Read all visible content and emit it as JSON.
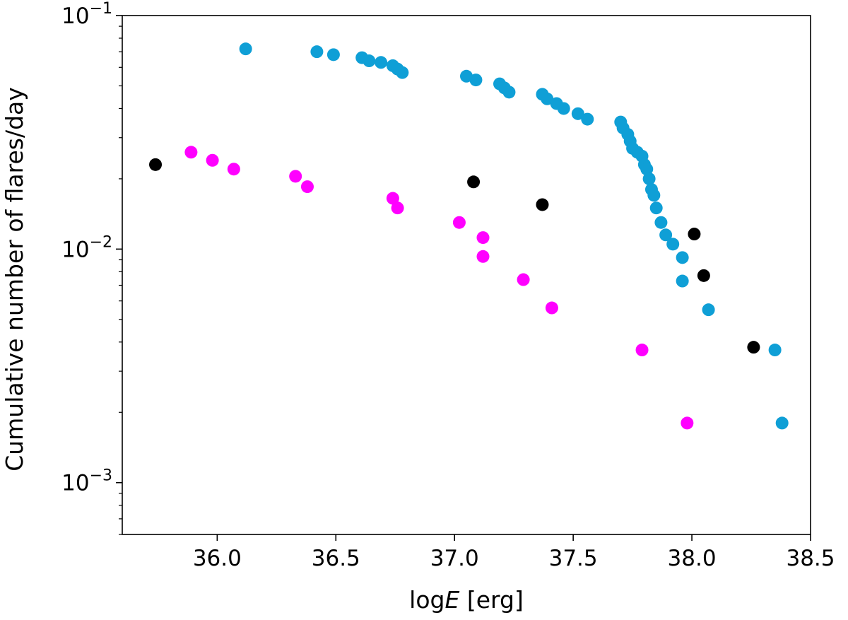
{
  "chart_data": {
    "type": "scatter",
    "title": "",
    "xlabel_prefix": "log",
    "xlabel_italic": "E",
    "xlabel_suffix": " [erg]",
    "ylabel": "Cumulative number of flares/day",
    "xlim": [
      35.6,
      38.5
    ],
    "ylim": [
      0.0006,
      0.1
    ],
    "yscale": "log",
    "grid": false,
    "x_ticks": [
      36.0,
      36.5,
      37.0,
      37.5,
      38.0,
      38.5
    ],
    "x_tick_labels": [
      "36.0",
      "36.5",
      "37.0",
      "37.5",
      "38.0",
      "38.5"
    ],
    "y_major_ticks": [
      0.001,
      0.01,
      0.1
    ],
    "y_tick_labels": [
      {
        "base": "10",
        "exp": "−3"
      },
      {
        "base": "10",
        "exp": "−2"
      },
      {
        "base": "10",
        "exp": "−1"
      }
    ],
    "series": [
      {
        "name": "blue",
        "color": "#0f9fd6",
        "x": [
          36.12,
          36.42,
          36.49,
          36.61,
          36.64,
          36.69,
          36.74,
          36.76,
          36.78,
          37.05,
          37.09,
          37.19,
          37.21,
          37.23,
          37.37,
          37.39,
          37.43,
          37.46,
          37.52,
          37.56,
          37.7,
          37.71,
          37.73,
          37.74,
          37.75,
          37.77,
          37.79,
          37.8,
          37.81,
          37.82,
          37.83,
          37.84,
          37.85,
          37.87,
          37.89,
          37.92,
          37.96,
          37.96,
          38.07,
          38.35,
          38.38
        ],
        "y": [
          0.072,
          0.07,
          0.068,
          0.066,
          0.064,
          0.063,
          0.061,
          0.059,
          0.057,
          0.055,
          0.053,
          0.051,
          0.049,
          0.047,
          0.046,
          0.044,
          0.042,
          0.04,
          0.038,
          0.036,
          0.035,
          0.033,
          0.031,
          0.029,
          0.027,
          0.026,
          0.025,
          0.023,
          0.022,
          0.02,
          0.018,
          0.017,
          0.015,
          0.013,
          0.0115,
          0.0105,
          0.0092,
          0.0073,
          0.0055,
          0.0037,
          0.0018
        ]
      },
      {
        "name": "magenta",
        "color": "#ff00ff",
        "x": [
          35.89,
          35.98,
          36.07,
          36.33,
          36.38,
          36.74,
          36.76,
          37.02,
          37.12,
          37.12,
          37.29,
          37.41,
          37.79,
          37.98
        ],
        "y": [
          0.026,
          0.024,
          0.022,
          0.0205,
          0.0185,
          0.0165,
          0.015,
          0.013,
          0.0112,
          0.0093,
          0.0074,
          0.0056,
          0.0037,
          0.0018
        ]
      },
      {
        "name": "black",
        "color": "#000000",
        "x": [
          35.74,
          37.08,
          37.37,
          38.01,
          38.05,
          38.26
        ],
        "y": [
          0.023,
          0.0194,
          0.0155,
          0.0116,
          0.0077,
          0.0038
        ]
      }
    ]
  }
}
